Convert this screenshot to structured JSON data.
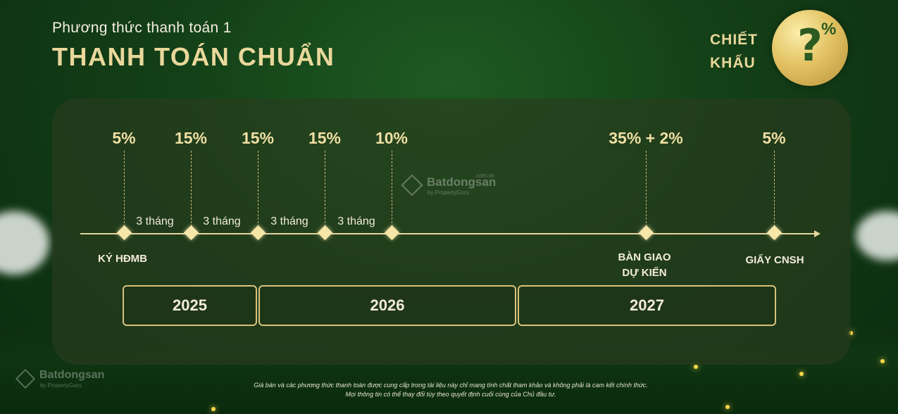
{
  "header": {
    "subtitle": "Phương thức thanh toán 1",
    "title": "THANH TOÁN CHUẨN"
  },
  "discount": {
    "line1": "CHIẾT",
    "line2": "KHẤU",
    "badge_symbol": "?",
    "badge_percent": "%"
  },
  "timeline": {
    "percentages": [
      "5%",
      "15%",
      "15%",
      "15%",
      "10%",
      "35% + 2%",
      "5%"
    ],
    "intervals": [
      "3 tháng",
      "3 tháng",
      "3 tháng",
      "3 tháng"
    ],
    "milestones": {
      "sign": "KÝ HĐMB",
      "handover_line1": "BÀN GIAO",
      "handover_line2": "DỰ KIẾN",
      "certificate": "GIẤY CNSH"
    },
    "years": [
      "2025",
      "2026",
      "2027"
    ]
  },
  "watermark": {
    "brand": "Batdongsan",
    "domain": ".com.vn",
    "by": "by PropertyGuru"
  },
  "disclaimer": {
    "line1": "Giá bán và các phương thức thanh toán được cung cấp trong tài liệu này chỉ mang tính chất tham khảo và không phải là cam kết chính thức.",
    "line2": "Mọi thông tin có thể thay đổi tùy theo quyết định cuối cùng của Chủ đầu tư."
  },
  "colors": {
    "gold": "#e9d79b",
    "background_green": "#133f17"
  }
}
